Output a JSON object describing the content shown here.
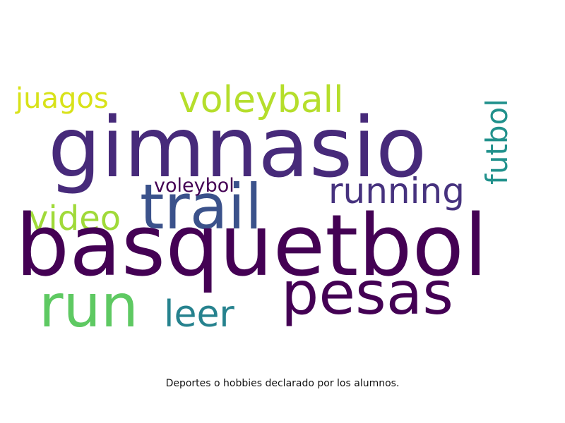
{
  "wordcloud": {
    "words": {
      "gimnasio": "gimnasio",
      "basquetbol": "basquetbol",
      "trail": "trail",
      "pesas": "pesas",
      "run": "run",
      "running": "running",
      "voleyball": "voleyball",
      "juagos": "juagos",
      "video": "video",
      "leer": "leer",
      "voleybol": "voleybol",
      "futbol": "futbol"
    },
    "colors": {
      "gimnasio": "#472a7a",
      "basquetbol": "#440154",
      "trail": "#3b528b",
      "pesas": "#440154",
      "run": "#5ec962",
      "running": "#46327e",
      "voleyball": "#b5de2b",
      "juagos": "#d8e219",
      "video": "#a0da39",
      "leer": "#26828e",
      "voleybol": "#440154",
      "futbol": "#21918c"
    }
  },
  "caption": "Deportes o hobbies declarado por los alumnos."
}
